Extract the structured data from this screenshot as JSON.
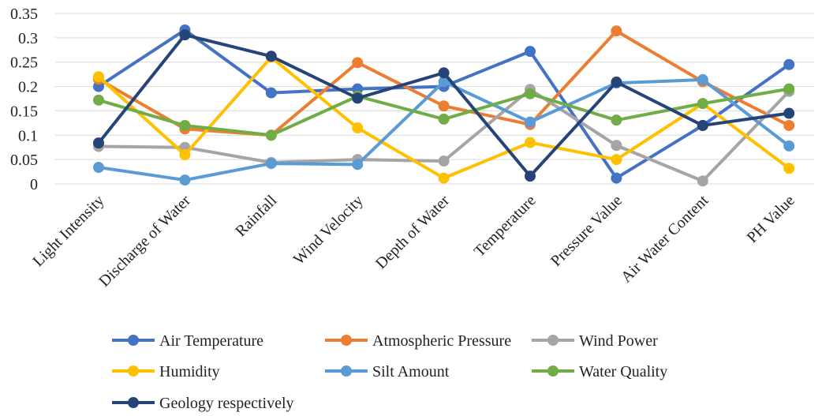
{
  "chart_data": {
    "type": "line",
    "title": "",
    "xlabel": "",
    "ylabel": "",
    "categories": [
      "Light Intensity",
      "Discharge of Water",
      "Rainfall",
      "Wind Velocity",
      "Depth of Water",
      "Temperature",
      "Pressure Value",
      "Air Water Content",
      "PH Value"
    ],
    "ylim": [
      0,
      0.35
    ],
    "yticks": [
      "0",
      "0.05",
      "0.1",
      "0.15",
      "0.2",
      "0.25",
      "0.3",
      "0.35"
    ],
    "grid": true,
    "legend_position": "bottom",
    "series": [
      {
        "name": "Air Temperature",
        "color": "#4472C4",
        "values": [
          0.2,
          0.316,
          0.187,
          0.195,
          0.2,
          0.272,
          0.012,
          0.12,
          0.245
        ]
      },
      {
        "name": "Atmospheric Pressure",
        "color": "#ED7D31",
        "values": [
          0.215,
          0.113,
          0.1,
          0.249,
          0.16,
          0.122,
          0.314,
          0.21,
          0.12
        ]
      },
      {
        "name": "Wind Power",
        "color": "#A5A5A5",
        "values": [
          0.077,
          0.075,
          0.044,
          0.05,
          0.047,
          0.194,
          0.079,
          0.006,
          0.19
        ]
      },
      {
        "name": "Humidity",
        "color": "#FFC000",
        "values": [
          0.22,
          0.06,
          0.26,
          0.115,
          0.012,
          0.085,
          0.05,
          0.165,
          0.032
        ]
      },
      {
        "name": "Silt Amount",
        "color": "#5B9BD5",
        "values": [
          0.034,
          0.008,
          0.042,
          0.04,
          0.21,
          0.127,
          0.207,
          0.214,
          0.078
        ]
      },
      {
        "name": "Water Quality",
        "color": "#70AD47",
        "values": [
          0.172,
          0.12,
          0.1,
          0.18,
          0.133,
          0.185,
          0.131,
          0.165,
          0.195
        ]
      },
      {
        "name": "Geology respectively",
        "color": "#264478",
        "values": [
          0.084,
          0.306,
          0.262,
          0.176,
          0.228,
          0.016,
          0.209,
          0.12,
          0.145
        ]
      }
    ]
  }
}
